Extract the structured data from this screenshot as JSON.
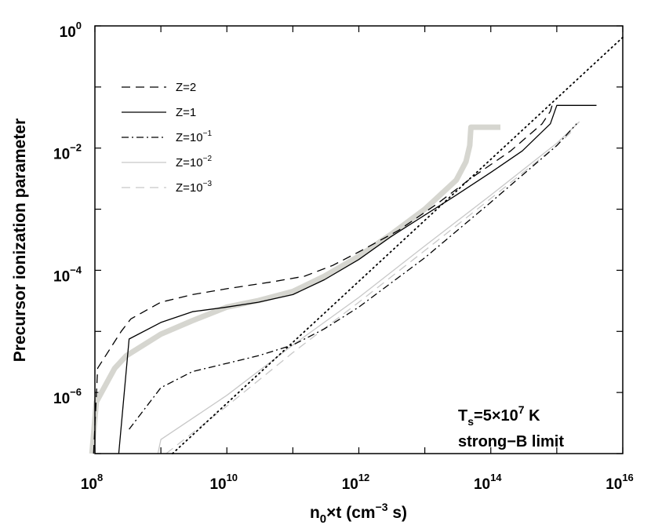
{
  "chart_data": {
    "type": "line",
    "title": "",
    "xlabel": {
      "base": "n",
      "sub": "0",
      "mid": "×t (cm",
      "sup": "−3",
      "tail": " s)"
    },
    "ylabel": "Precursor ionization parameter",
    "xscale": "log",
    "yscale": "log",
    "xlim": [
      100000000.0,
      1e+16
    ],
    "ylim": [
      1e-07,
      1
    ],
    "x_ticks": [
      {
        "base": "10",
        "exp": "8",
        "value": 100000000.0
      },
      {
        "base": "10",
        "exp": "10",
        "value": 10000000000.0
      },
      {
        "base": "10",
        "exp": "12",
        "value": 1000000000000.0
      },
      {
        "base": "10",
        "exp": "14",
        "value": 100000000000000.0
      },
      {
        "base": "10",
        "exp": "16",
        "value": 1e+16
      }
    ],
    "y_ticks": [
      {
        "base": "10",
        "exp": "0",
        "value": 1
      },
      {
        "base": "10",
        "exp": "−2",
        "value": 0.01
      },
      {
        "base": "10",
        "exp": "−4",
        "value": 0.0001
      },
      {
        "base": "10",
        "exp": "−6",
        "value": 1e-06
      }
    ],
    "legend_position": "top-left",
    "annotation": {
      "line1_base": "T",
      "line1_sub": "s",
      "line1_mid": "=5×10",
      "line1_sup": "7",
      "line1_tail": " K",
      "line2": "strong−B limit"
    },
    "series": [
      {
        "name": "Z=2",
        "label_base": "Z=2",
        "label_exp": "",
        "style": "dashed",
        "color": "#000000",
        "points": [
          [
            95500000.0,
            1e-07
          ],
          [
            110000000.0,
            2.5e-06
          ],
          [
            250000000.0,
            1e-05
          ],
          [
            350000000.0,
            1.6e-05
          ],
          [
            1000000000.0,
            3e-05
          ],
          [
            3000000000.0,
            4e-05
          ],
          [
            10000000000.0,
            5e-05
          ],
          [
            50000000000.0,
            6.5e-05
          ],
          [
            150000000000.0,
            8e-05
          ],
          [
            400000000000.0,
            0.00012
          ],
          [
            1000000000000.0,
            0.0002
          ],
          [
            4000000000000.0,
            0.00045
          ],
          [
            15000000000000.0,
            0.0012
          ],
          [
            50000000000000.0,
            0.0032
          ],
          [
            200000000000000.0,
            0.009
          ],
          [
            600000000000000.0,
            0.025
          ],
          [
            800000000000000.0,
            0.04
          ],
          [
            850000000000000.0,
            0.05
          ]
        ]
      },
      {
        "name": "Z=1",
        "label_base": "Z=1",
        "label_exp": "",
        "style": "solid",
        "color": "#000000",
        "points": [
          [
            230000000.0,
            1e-07
          ],
          [
            330000000.0,
            7.5e-06
          ],
          [
            1000000000.0,
            1.4e-05
          ],
          [
            3000000000.0,
            2.1e-05
          ],
          [
            10000000000.0,
            2.5e-05
          ],
          [
            30000000000.0,
            3e-05
          ],
          [
            100000000000.0,
            4e-05
          ],
          [
            300000000000.0,
            7e-05
          ],
          [
            1000000000000.0,
            0.00015
          ],
          [
            3000000000000.0,
            0.00035
          ],
          [
            10000000000000.0,
            0.0008
          ],
          [
            30000000000000.0,
            0.0017
          ],
          [
            100000000000000.0,
            0.004
          ],
          [
            300000000000000.0,
            0.009
          ],
          [
            800000000000000.0,
            0.025
          ],
          [
            1000000000000000.0,
            0.05
          ],
          [
            4000000000000000.0,
            0.05
          ]
        ]
      },
      {
        "name": "Z=1e-1",
        "label_base": "Z=10",
        "label_exp": "−1",
        "style": "dashdot",
        "color": "#000000",
        "points": [
          [
            330000000.0,
            2.5e-07
          ],
          [
            1000000000.0,
            1.2e-06
          ],
          [
            3000000000.0,
            2.2e-06
          ],
          [
            10000000000.0,
            3e-06
          ],
          [
            30000000000.0,
            4e-06
          ],
          [
            100000000000.0,
            6e-06
          ],
          [
            300000000000.0,
            1.1e-05
          ],
          [
            1000000000000.0,
            2.5e-05
          ],
          [
            10000000000000.0,
            0.00016
          ],
          [
            100000000000000.0,
            0.0013
          ],
          [
            1000000000000000.0,
            0.011
          ],
          [
            2000000000000000.0,
            0.025
          ]
        ]
      },
      {
        "name": "Z=1e-2",
        "label_base": "Z=10",
        "label_exp": "−2",
        "style": "solid",
        "color": "#c8c8c8",
        "points": [
          [
            900000000.0,
            1e-07
          ],
          [
            1000000000.0,
            1.7e-07
          ],
          [
            10000000000.0,
            9e-07
          ],
          [
            100000000000.0,
            6e-06
          ],
          [
            1000000000000.0,
            3.6e-05
          ],
          [
            10000000000000.0,
            0.00025
          ],
          [
            100000000000000.0,
            0.0017
          ],
          [
            1000000000000000.0,
            0.012
          ],
          [
            2200000000000000.0,
            0.027
          ]
        ]
      },
      {
        "name": "Z=1e-3",
        "label_base": "Z=10",
        "label_exp": "−3",
        "style": "dashed",
        "color": "#c8c8c8",
        "points": [
          [
            1200000000.0,
            1e-07
          ],
          [
            10000000000.0,
            6e-07
          ],
          [
            100000000000.0,
            4.5e-06
          ],
          [
            1000000000000.0,
            3e-05
          ],
          [
            10000000000000.0,
            0.00021
          ],
          [
            100000000000000.0,
            0.0015
          ],
          [
            1000000000000000.0,
            0.011
          ],
          [
            1800000000000000.0,
            0.02
          ]
        ]
      },
      {
        "name": "dotted reference",
        "label_base": "",
        "label_exp": "",
        "style": "dotted",
        "color": "#000000",
        "in_legend": false,
        "points": [
          [
            1500000000.0,
            1e-07
          ],
          [
            1e+16,
            0.65
          ]
        ]
      },
      {
        "name": "thick gray curve",
        "label_base": "",
        "label_exp": "",
        "style": "thick",
        "color": "#d6d6d0",
        "in_legend": false,
        "points": [
          [
            90000000.0,
            1e-07
          ],
          [
            105000000.0,
            7e-07
          ],
          [
            200000000.0,
            2.5e-06
          ],
          [
            300000000.0,
            4e-06
          ],
          [
            1000000000.0,
            9e-06
          ],
          [
            3000000000.0,
            1.5e-05
          ],
          [
            10000000000.0,
            2.5e-05
          ],
          [
            30000000000.0,
            3.2e-05
          ],
          [
            100000000000.0,
            4.5e-05
          ],
          [
            300000000000.0,
            8e-05
          ],
          [
            1000000000000.0,
            0.00017
          ],
          [
            3000000000000.0,
            0.00038
          ],
          [
            10000000000000.0,
            0.001
          ],
          [
            30000000000000.0,
            0.003
          ],
          [
            42000000000000.0,
            0.006
          ],
          [
            48000000000000.0,
            0.011
          ],
          [
            50000000000000.0,
            0.022
          ],
          [
            140000000000000.0,
            0.022
          ]
        ]
      }
    ]
  }
}
